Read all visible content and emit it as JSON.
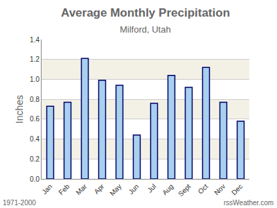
{
  "chart_data": {
    "type": "bar",
    "title": "Average Monthly Precipitation",
    "subtitle": "Milford, Utah",
    "y_label": "Inches",
    "categories": [
      "Jan",
      "Feb",
      "Mar",
      "Apr",
      "May",
      "Jun",
      "Jul",
      "Aug",
      "Sept",
      "Oct",
      "Nov",
      "Dec"
    ],
    "values": [
      0.73,
      0.77,
      1.21,
      0.99,
      0.94,
      0.44,
      0.76,
      1.04,
      0.92,
      1.12,
      0.77,
      0.58
    ],
    "color": "#a8d0ef",
    "ylim": [
      0,
      1.4
    ],
    "yticks": [
      {
        "value": 0,
        "label": "0.0"
      },
      0.2,
      0.4,
      0.6,
      0.8,
      {
        "value": 1,
        "label": "1.0"
      },
      1.2,
      1.4
    ],
    "grid": true,
    "annotations": [
      "1971-2000",
      "rssWeather.com"
    ]
  }
}
